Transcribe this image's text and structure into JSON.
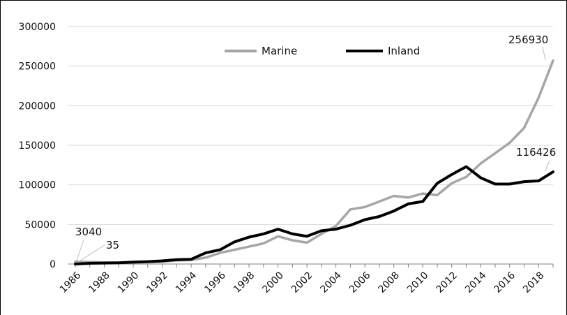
{
  "chart_data": {
    "type": "line",
    "title": "",
    "xlabel": "",
    "ylabel": "",
    "ylim": [
      0,
      300000
    ],
    "yticks": [
      "300000",
      "250000",
      "200000",
      "150000",
      "100000",
      "50000",
      "0"
    ],
    "xticks": [
      "1986",
      "1988",
      "1990",
      "1992",
      "1994",
      "1996",
      "1998",
      "2000",
      "2002",
      "2004",
      "2006",
      "2008",
      "2010",
      "2012",
      "2014",
      "2016",
      "2018"
    ],
    "grid": true,
    "legend_position": "top",
    "x": [
      1986,
      1987,
      1988,
      1989,
      1990,
      1991,
      1992,
      1993,
      1994,
      1995,
      1996,
      1997,
      1998,
      1999,
      2000,
      2001,
      2002,
      2003,
      2004,
      2005,
      2006,
      2007,
      2008,
      2009,
      2010,
      2011,
      2012,
      2013,
      2014,
      2015,
      2016,
      2017,
      2018,
      2019
    ],
    "series": [
      {
        "name": "Marine",
        "color": "#a6a6a6",
        "values": [
          3040,
          2500,
          2000,
          1800,
          2000,
          2500,
          3000,
          4500,
          5000,
          8000,
          14000,
          18000,
          22000,
          26000,
          35000,
          30000,
          27000,
          38000,
          48000,
          69000,
          72000,
          79000,
          86000,
          84000,
          89000,
          87000,
          102000,
          110000,
          127000,
          140000,
          153000,
          172000,
          210000,
          256930
        ]
      },
      {
        "name": "Inland",
        "color": "#000000",
        "values": [
          35,
          1000,
          1200,
          1500,
          2500,
          3000,
          4000,
          5500,
          6000,
          14000,
          18000,
          28000,
          34000,
          38000,
          44000,
          38000,
          35000,
          42000,
          44000,
          49000,
          56000,
          60000,
          67000,
          76000,
          79000,
          102000,
          113000,
          123000,
          109000,
          101000,
          101000,
          104000,
          105000,
          116426
        ]
      }
    ],
    "annotations": [
      {
        "text": "3040",
        "x": 1986,
        "y": 3040
      },
      {
        "text": "35",
        "x": 1986,
        "y": 35
      },
      {
        "text": "256930",
        "x": 2019,
        "y": 256930
      },
      {
        "text": "116426",
        "x": 2019,
        "y": 116426
      }
    ]
  }
}
